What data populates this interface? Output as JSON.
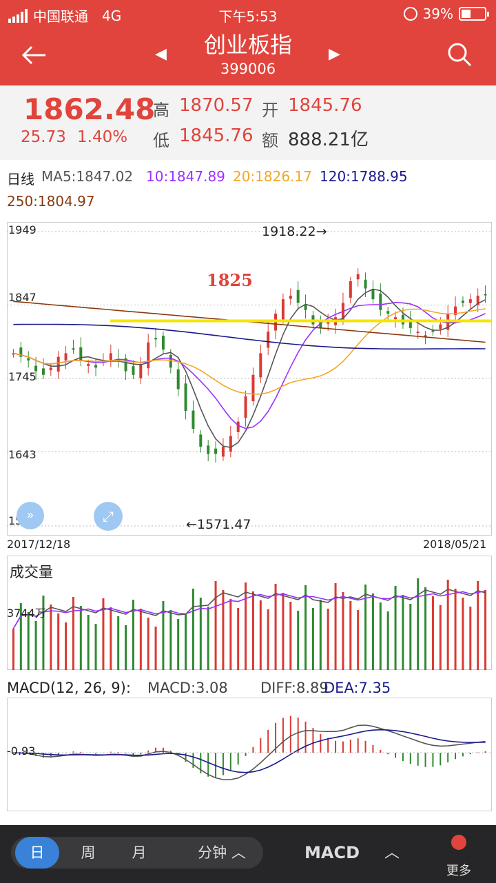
{
  "status_bar": {
    "carrier": "中国联通",
    "network": "4G",
    "time": "下午5:53",
    "battery": "39%"
  },
  "header": {
    "title": "创业板指",
    "code": "399006",
    "back_icon": "arrow-left-icon",
    "search_icon": "search-icon"
  },
  "quote": {
    "price": "1862.48",
    "change": "25.73",
    "change_pct": "1.40%",
    "high_label": "高",
    "high": "1870.57",
    "open_label": "开",
    "open": "1845.76",
    "low_label": "低",
    "low": "1845.76",
    "amount_label": "额",
    "amount": "888.21亿"
  },
  "ma_legend": {
    "period": "日线",
    "ma5": "MA5:1847.02",
    "ma10": "10:1847.89",
    "ma20": "20:1826.17",
    "ma120": "120:1788.95",
    "ma250": "250:1804.97"
  },
  "colors": {
    "up": "#d93a31",
    "down": "#2f8a2f",
    "ma5": "#555555",
    "ma10": "#9b30ff",
    "ma20": "#f5a623",
    "ma120": "#1a1a8c",
    "ma250": "#8b3a0f",
    "annot": "#f5e400"
  },
  "kline": {
    "y_ticks": [
      "1949",
      "1847",
      "1745",
      "1643",
      "1540"
    ],
    "y_tick_values": [
      1949,
      1847,
      1745,
      1643,
      1540
    ],
    "date_start": "2017/12/18",
    "date_end": "2018/05/21",
    "high_marker": "1918.22→",
    "low_marker": "←1571.47",
    "annotation": "1825"
  },
  "volume": {
    "title": "成交量",
    "tick": "3744万"
  },
  "macd": {
    "title": "MACD(12, 26, 9):",
    "macd": "MACD:3.08",
    "diff": "DIFF:8.89",
    "dea": "DEA:7.35",
    "tick": "-0.93"
  },
  "bottom_bar": {
    "tabs": [
      "日",
      "周",
      "月",
      "分钟 ︿"
    ],
    "indicator": "MACD",
    "chevron": "︿",
    "more": "更多"
  },
  "chart_data": {
    "type": "candlestick",
    "title": "创业板指",
    "x_start": "2017/12/18",
    "x_end": "2018/05/21",
    "ylim": [
      1540,
      1949
    ],
    "close_approx": [
      1780,
      1775,
      1770,
      1755,
      1750,
      1760,
      1775,
      1780,
      1785,
      1770,
      1765,
      1760,
      1770,
      1780,
      1770,
      1755,
      1750,
      1765,
      1795,
      1800,
      1785,
      1760,
      1730,
      1700,
      1675,
      1650,
      1640,
      1640,
      1650,
      1665,
      1685,
      1720,
      1750,
      1780,
      1810,
      1835,
      1855,
      1860,
      1850,
      1840,
      1820,
      1815,
      1825,
      1830,
      1850,
      1880,
      1890,
      1870,
      1855,
      1840,
      1835,
      1830,
      1820,
      1815,
      1810,
      1805,
      1810,
      1820,
      1835,
      1845,
      1850,
      1855,
      1860,
      1862
    ]
  }
}
